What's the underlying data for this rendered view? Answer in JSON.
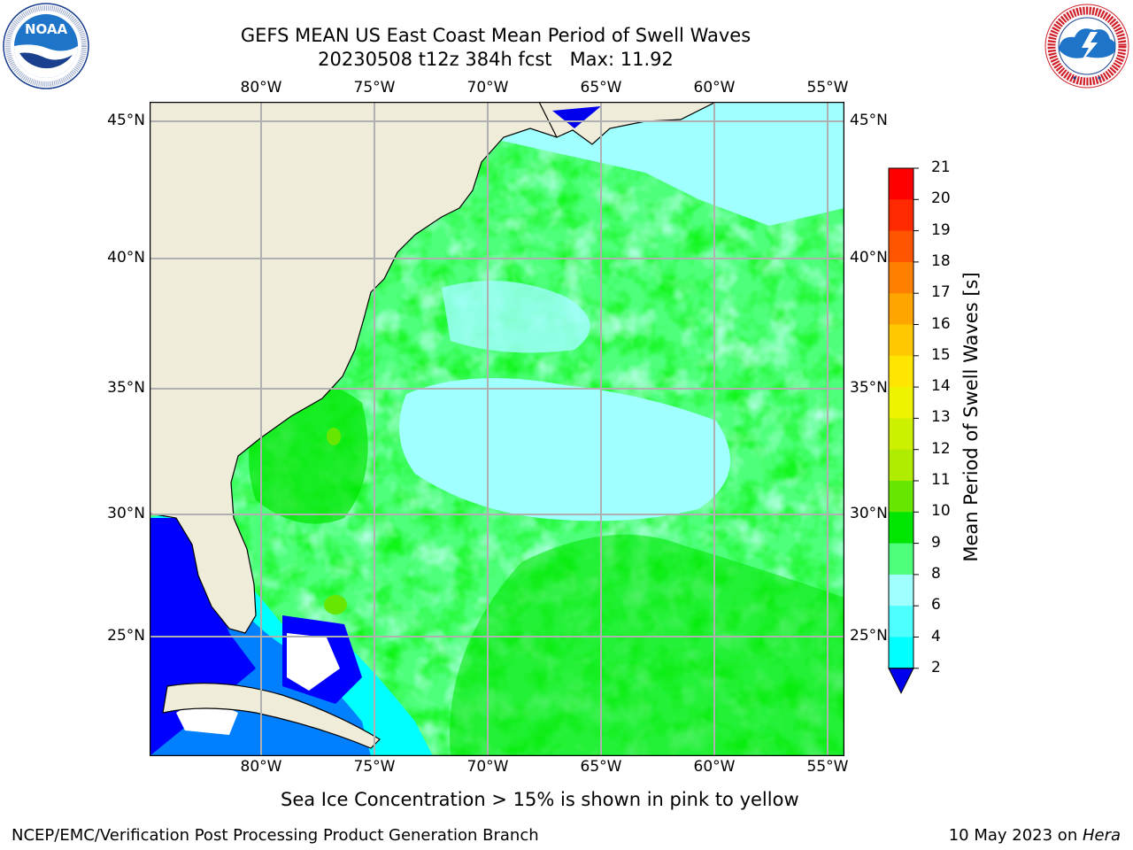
{
  "title": {
    "line1": "GEFS MEAN US East Coast Mean Period of Swell Waves",
    "line2": "20230508 t12z 384h fcst   Max: 11.92"
  },
  "logos": {
    "noaa": {
      "text": "NOAA",
      "ring_text": "NATIONAL OCEANIC AND ATMOSPHERIC ADMINISTRATION · U.S. DEPARTMENT OF COMMERCE"
    },
    "nws": {
      "ring_text": "NATIONAL WEATHER SERVICE"
    }
  },
  "map": {
    "lon_ticks": [
      "80°W",
      "75°W",
      "70°W",
      "65°W",
      "60°W",
      "55°W"
    ],
    "lat_ticks_left": [
      "45°N",
      "40°N",
      "35°N",
      "30°N",
      "25°N"
    ],
    "lat_ticks_right": [
      "45°N",
      "40°N",
      "35°N",
      "30°N",
      "25°N"
    ],
    "lon_range": [
      -85,
      -54.4
    ],
    "lat_range": [
      20.4,
      45.8
    ],
    "grid": true,
    "land_color": "#efedda",
    "coast_color": "#000000",
    "grid_color": "#b0b0b0"
  },
  "colorbar": {
    "label": "Mean Period of Swell Waves [s]",
    "ticks": [
      "21",
      "20",
      "19",
      "18",
      "17",
      "16",
      "15",
      "14",
      "13",
      "12",
      "11",
      "10",
      "9",
      "8",
      "6",
      "4",
      "2"
    ],
    "colors": [
      "#ff0000",
      "#ff2a00",
      "#ff5500",
      "#ff7f00",
      "#ffa500",
      "#ffc800",
      "#ffe600",
      "#eef400",
      "#ccf000",
      "#b0ec00",
      "#66e600",
      "#00e600",
      "#4dff7a",
      "#a0ffff",
      "#4dffff",
      "#00ffff",
      "#0099ff",
      "#0055ff",
      "#0000ee"
    ],
    "extend": "min"
  },
  "field_colors": {
    "le4": "#0000ff",
    "p4_6": "#0080ff",
    "p6_8": "#00ffff",
    "p8_9": "#a0ffff",
    "p9_10": "#4dff7a",
    "p10_11": "#00e600",
    "p11_12": "#66e600",
    "ice_free_white": "#ffffff"
  },
  "footnote": "Sea Ice Concentration > 15% is shown in pink to yellow",
  "footer": {
    "left": "NCEP/EMC/Verification Post Processing Product Generation Branch",
    "right_prefix": "10 May 2023 on ",
    "right_italic": "Hera"
  }
}
